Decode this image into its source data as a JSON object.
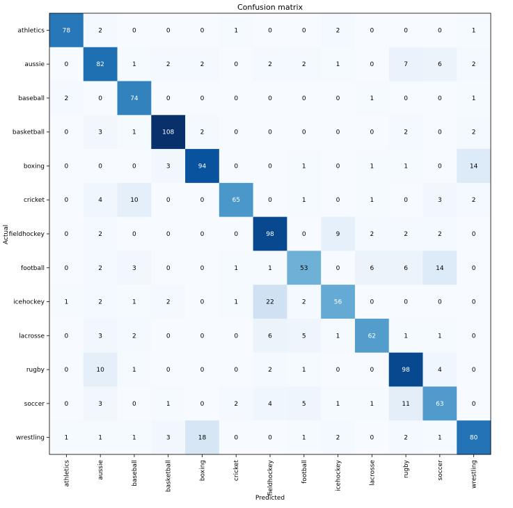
{
  "chart_data": {
    "type": "heatmap",
    "title": "Confusion matrix",
    "xlabel": "Predicted",
    "ylabel": "Actual",
    "colormap": "Blues",
    "colors": {
      "low": "#f7fbff",
      "high": "#08306b",
      "text_dark": "#000000",
      "text_light": "#ffffff"
    },
    "x_categories": [
      "athletics",
      "aussie",
      "baseball",
      "basketball",
      "boxing",
      "cricket",
      "fieldhockey",
      "football",
      "icehockey",
      "lacrosse",
      "rugby",
      "soccer",
      "wrestling"
    ],
    "y_categories": [
      "athletics",
      "aussie",
      "baseball",
      "basketball",
      "boxing",
      "cricket",
      "fieldhockey",
      "football",
      "icehockey",
      "lacrosse",
      "rugby",
      "soccer",
      "wrestling"
    ],
    "values": [
      [
        78,
        2,
        0,
        0,
        0,
        1,
        0,
        0,
        2,
        0,
        0,
        0,
        1
      ],
      [
        0,
        82,
        1,
        2,
        2,
        0,
        2,
        2,
        1,
        0,
        7,
        6,
        2
      ],
      [
        2,
        0,
        74,
        0,
        0,
        0,
        0,
        0,
        0,
        1,
        0,
        0,
        1
      ],
      [
        0,
        3,
        1,
        108,
        2,
        0,
        0,
        0,
        0,
        0,
        2,
        0,
        2
      ],
      [
        0,
        0,
        0,
        3,
        94,
        0,
        0,
        1,
        0,
        1,
        1,
        0,
        14
      ],
      [
        0,
        4,
        10,
        0,
        0,
        65,
        0,
        1,
        0,
        1,
        0,
        3,
        2
      ],
      [
        0,
        2,
        0,
        0,
        0,
        0,
        98,
        0,
        9,
        2,
        2,
        2,
        0
      ],
      [
        0,
        2,
        3,
        0,
        0,
        1,
        1,
        53,
        0,
        6,
        6,
        14,
        0
      ],
      [
        1,
        2,
        1,
        2,
        0,
        1,
        22,
        2,
        56,
        0,
        0,
        0,
        0
      ],
      [
        0,
        3,
        2,
        0,
        0,
        0,
        6,
        5,
        1,
        62,
        1,
        1,
        0
      ],
      [
        0,
        10,
        1,
        0,
        0,
        0,
        2,
        1,
        0,
        0,
        98,
        4,
        0
      ],
      [
        0,
        3,
        0,
        1,
        0,
        2,
        4,
        5,
        1,
        1,
        11,
        63,
        0
      ],
      [
        1,
        1,
        1,
        3,
        18,
        0,
        0,
        1,
        2,
        0,
        2,
        1,
        80
      ]
    ],
    "vmin": 0,
    "vmax": 108
  }
}
